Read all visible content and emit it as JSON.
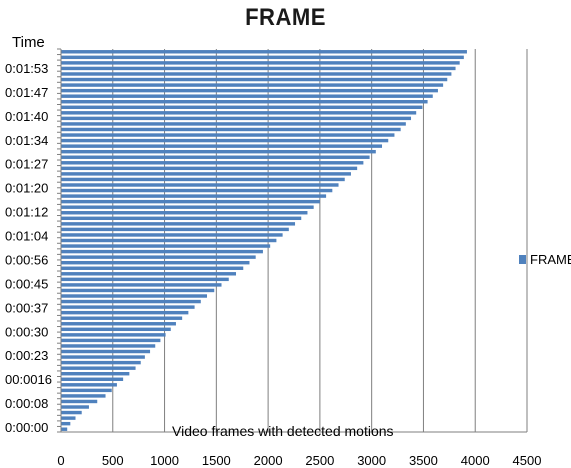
{
  "chart_data": {
    "type": "bar",
    "orientation": "horizontal",
    "title": "FRAME",
    "ylabel": "Time",
    "xlabel": "Video frames with detected motions",
    "xlim": [
      0,
      4500
    ],
    "xticks": [
      "0",
      "500",
      "1000",
      "1500",
      "2000",
      "2500",
      "3000",
      "3500",
      "4000",
      "4500"
    ],
    "yticks": [
      "0:00:00",
      "0:00:08",
      "00:0016",
      "0:00:23",
      "0:00:30",
      "0:00:37",
      "0:00:45",
      "0:00:56",
      "0:01:04",
      "0:01:12",
      "0:01:20",
      "0:01:27",
      "0:01:34",
      "0:01:40",
      "0:01:47",
      "0:01:53"
    ],
    "grid": true,
    "legend": {
      "position": "right",
      "entries": [
        "FRAME"
      ]
    },
    "series": [
      {
        "name": "FRAME",
        "color": "#4f81bd",
        "values": [
          60,
          90,
          140,
          200,
          270,
          350,
          430,
          490,
          540,
          600,
          660,
          720,
          770,
          810,
          860,
          910,
          960,
          1010,
          1060,
          1110,
          1170,
          1230,
          1290,
          1350,
          1410,
          1480,
          1550,
          1620,
          1690,
          1760,
          1820,
          1880,
          1950,
          2020,
          2080,
          2140,
          2200,
          2260,
          2320,
          2380,
          2440,
          2500,
          2560,
          2620,
          2680,
          2740,
          2800,
          2860,
          2920,
          2980,
          3040,
          3100,
          3160,
          3220,
          3280,
          3330,
          3380,
          3430,
          3490,
          3540,
          3590,
          3640,
          3690,
          3730,
          3770,
          3810,
          3850,
          3890,
          3920
        ]
      }
    ]
  }
}
